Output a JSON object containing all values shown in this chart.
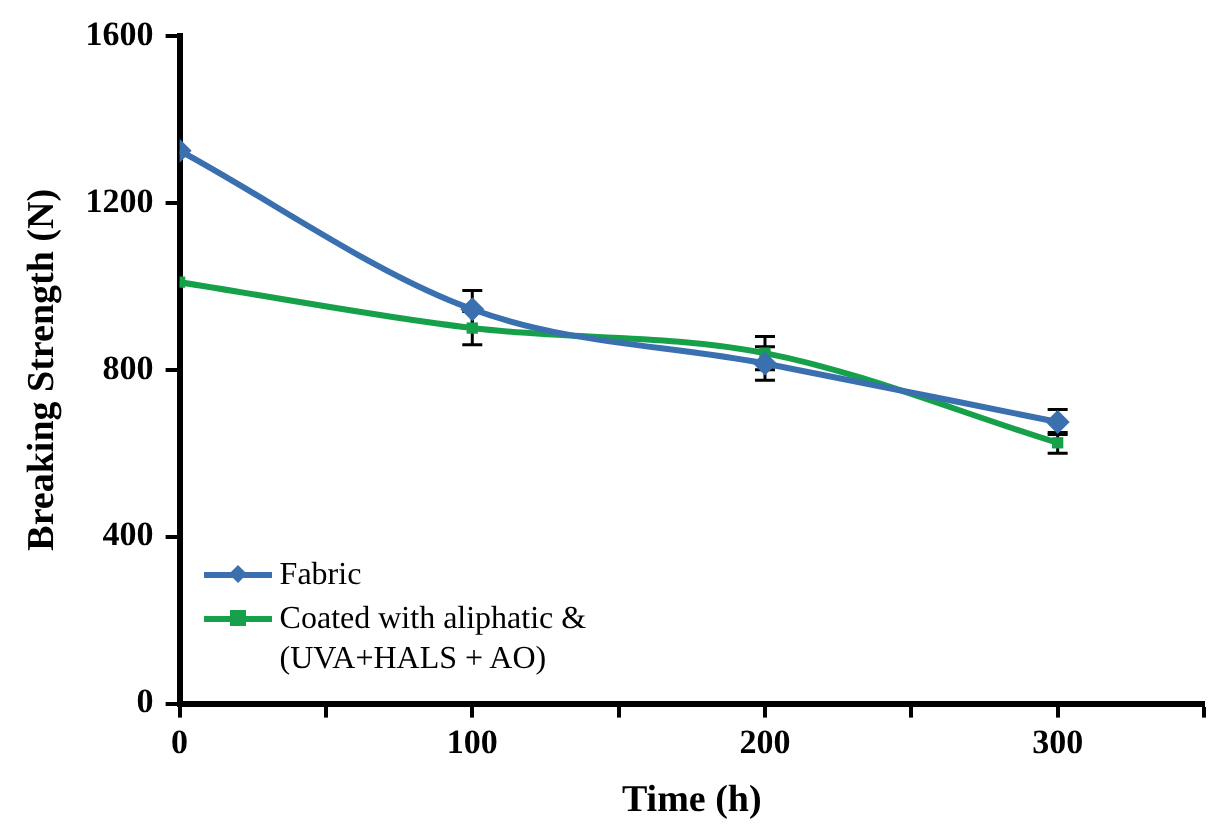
{
  "chart_data": {
    "type": "line",
    "xlabel": "Time (h)",
    "ylabel": "Breaking Strength (N)",
    "x": [
      0,
      100,
      200,
      300
    ],
    "xlim": [
      0,
      350
    ],
    "xticks": [
      0,
      {
        "value": 50,
        "label": null
      },
      100,
      {
        "value": 150,
        "label": null
      },
      200,
      {
        "value": 250,
        "label": null
      },
      300,
      {
        "value": 350,
        "label": null
      }
    ],
    "ylim": [
      0,
      1600
    ],
    "yticks": [
      0,
      400,
      800,
      1200,
      1600
    ],
    "grid": false,
    "legend": "bottom left",
    "series": [
      {
        "name": "Fabric",
        "color": "#3a70b0",
        "marker": "diamond",
        "values": [
          1325,
          945,
          815,
          675
        ],
        "errors": [
          null,
          45,
          40,
          30
        ]
      },
      {
        "name": "Coated with aliphatic &\n(UVA+HALS + AO)",
        "color": "#17a04a",
        "marker": "square",
        "values": [
          1010,
          900,
          840,
          625
        ],
        "errors": [
          null,
          40,
          40,
          25
        ]
      }
    ]
  }
}
